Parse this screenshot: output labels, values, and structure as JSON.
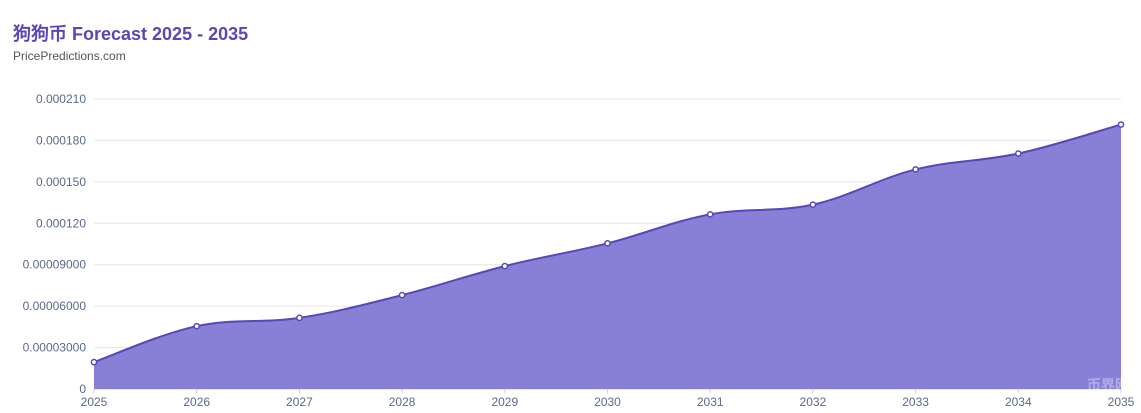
{
  "chart_data": {
    "type": "area",
    "title": "狗狗币 Forecast 2025 - 2035",
    "subtitle": "PricePredictions.com",
    "x": [
      "2025",
      "2026",
      "2027",
      "2028",
      "2029",
      "2030",
      "2031",
      "2032",
      "2033",
      "2034",
      "2035"
    ],
    "series": [
      {
        "values": [
          1.95e-05,
          4.55e-05,
          5.15e-05,
          6.8e-05,
          8.9e-05,
          0.0001055,
          0.0001265,
          0.0001335,
          0.000159,
          0.0001705,
          0.0001915
        ]
      }
    ],
    "y_ticks": [
      "0",
      "0.00003000",
      "0.00006000",
      "0.00009000",
      "0.000120",
      "0.000150",
      "0.000180",
      "0.000210"
    ],
    "y_tick_values": [
      0,
      3e-05,
      6e-05,
      9e-05,
      0.00012,
      0.00015,
      0.00018,
      0.00021
    ],
    "ylim": [
      0,
      0.00021
    ],
    "grid": true,
    "legend": "none",
    "colors": {
      "title": "#5648b6",
      "line": "#5648b6",
      "fill": "#8880d6",
      "grid": "#e6e6e6",
      "axis_text": "#5a6a8a"
    }
  },
  "watermark": "币界网"
}
